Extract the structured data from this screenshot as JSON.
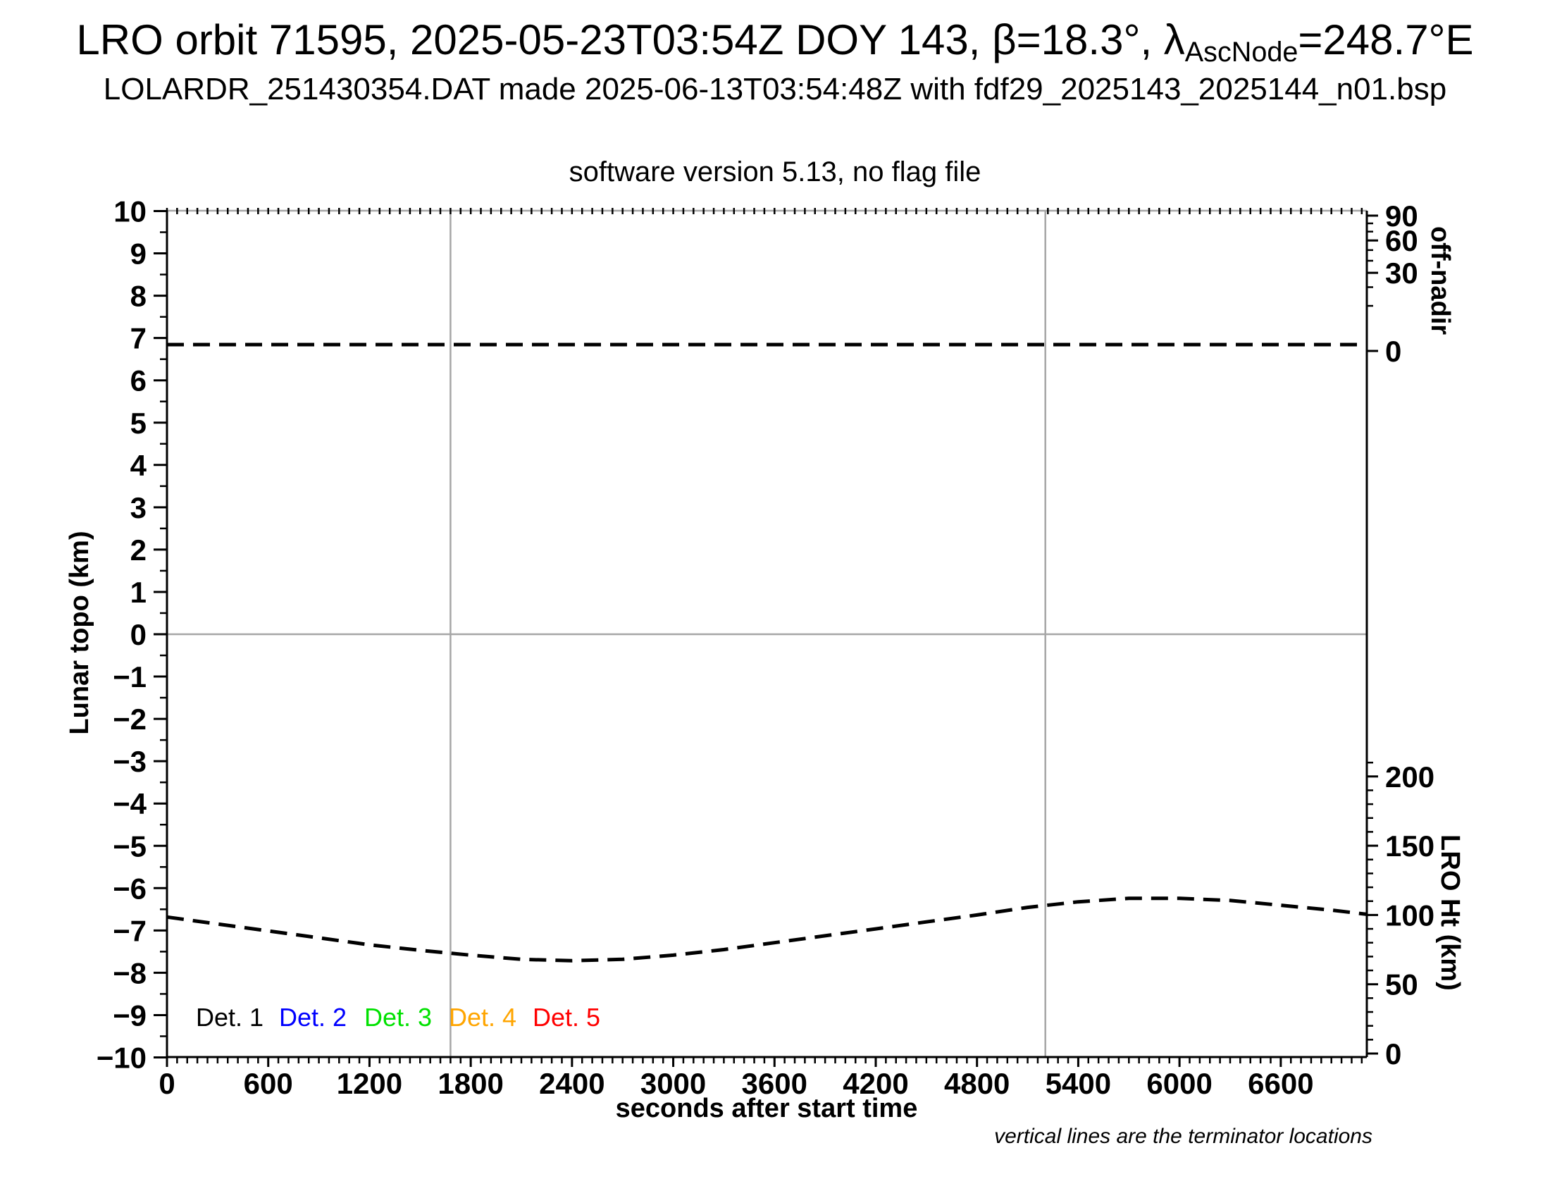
{
  "title": {
    "line1_prefix": "LRO orbit 71595, 2025-05-23T03:54Z DOY 143, β=18.3°, λ",
    "line1_sub": "AscNode",
    "line1_suffix": "=248.7°E",
    "line2": "LOLARDR_251430354.DAT made 2025-06-13T03:54:48Z with fdf29_2025143_2025144_n01.bsp",
    "line3": "software version 5.13, no flag file"
  },
  "chart_data": {
    "type": "line",
    "title": "LRO orbit 71595, 2025-05-23T03:54Z DOY 143, β=18.3°, λAscNode=248.7°E",
    "subtitle1": "LOLARDR_251430354.DAT made 2025-06-13T03:54:48Z with fdf29_2025143_2025144_n01.bsp",
    "subtitle2": "software version 5.13, no flag file",
    "grid": "off",
    "x_axis": {
      "label": "seconds after start time",
      "range_s": [
        0,
        7110
      ],
      "major_ticks": [
        0,
        600,
        1200,
        1800,
        2400,
        3000,
        3600,
        4200,
        4800,
        5400,
        6000,
        6600
      ],
      "major_tick_labels": [
        "0",
        "600",
        "1200",
        "1800",
        "2400",
        "3000",
        "3600",
        "4200",
        "4800",
        "5400",
        "6000",
        "6600"
      ],
      "minor_step_s": 60
    },
    "y_axis_left": {
      "label": "Lunar topo (km)",
      "range": [
        -10,
        10
      ],
      "major_step": 1,
      "minor_step": 0.5,
      "major_ticks": [
        10,
        9,
        8,
        7,
        6,
        5,
        4,
        3,
        2,
        1,
        0,
        -1,
        -2,
        -3,
        -4,
        -5,
        -6,
        -7,
        -8,
        -9,
        -10
      ],
      "major_tick_labels": [
        "10",
        "9",
        "8",
        "7",
        "6",
        "5",
        "4",
        "3",
        "2",
        "1",
        "0",
        "−1",
        "−2",
        "−3",
        "−4",
        "−5",
        "−6",
        "−7",
        "−8",
        "−9",
        "−10"
      ]
    },
    "y_axis_right_offnadir": {
      "label": "off-nadir",
      "major_ticks": [
        90,
        60,
        30,
        0
      ],
      "major_tick_labels": [
        "90",
        "60",
        "30",
        "0"
      ],
      "minor_ticks": [
        80,
        70,
        50,
        40,
        20,
        10
      ]
    },
    "y_axis_right_height": {
      "label": "LRO Ht (km)",
      "major_ticks": [
        200,
        150,
        100,
        50,
        0
      ],
      "major_tick_labels": [
        "200",
        "150",
        "100",
        "50",
        "0"
      ],
      "minor_step_km": 10,
      "minor_max_km": 210
    },
    "series": [
      {
        "name": "spacecraft off-nadir angle",
        "axis": "offnadir",
        "style": "dashed",
        "color": "#000000",
        "constant_deg": 0.2
      },
      {
        "name": "LRO height above surface",
        "axis": "height",
        "style": "dashed",
        "color": "#000000",
        "points_s_km": [
          [
            0,
            98.5
          ],
          [
            300,
            93.5
          ],
          [
            600,
            88.5
          ],
          [
            900,
            83.5
          ],
          [
            1200,
            78.5
          ],
          [
            1500,
            74.5
          ],
          [
            1800,
            71.0
          ],
          [
            2100,
            68.0
          ],
          [
            2400,
            67.0
          ],
          [
            2700,
            68.0
          ],
          [
            3000,
            71.0
          ],
          [
            3300,
            75.0
          ],
          [
            3600,
            80.0
          ],
          [
            3900,
            85.0
          ],
          [
            4200,
            90.0
          ],
          [
            4500,
            95.0
          ],
          [
            4800,
            100.0
          ],
          [
            5100,
            105.5
          ],
          [
            5400,
            109.5
          ],
          [
            5700,
            112.0
          ],
          [
            6000,
            112.0
          ],
          [
            6300,
            110.5
          ],
          [
            6600,
            107.0
          ],
          [
            6900,
            103.5
          ],
          [
            7110,
            100.5
          ]
        ]
      }
    ],
    "terminator_lines_s": [
      1680,
      5205
    ],
    "zero_line_topo_km": 0,
    "legend": [
      {
        "label": "Det. 1",
        "color": "#000000"
      },
      {
        "label": "Det. 2",
        "color": "#0000ff"
      },
      {
        "label": "Det. 3",
        "color": "#00e100"
      },
      {
        "label": "Det. 4",
        "color": "#ffa500"
      },
      {
        "label": "Det. 5",
        "color": "#ff0000"
      }
    ],
    "note": "vertical lines are the terminator locations",
    "colors": {
      "guide_gray": "#a6a6a6",
      "frame_black": "#000000"
    }
  }
}
